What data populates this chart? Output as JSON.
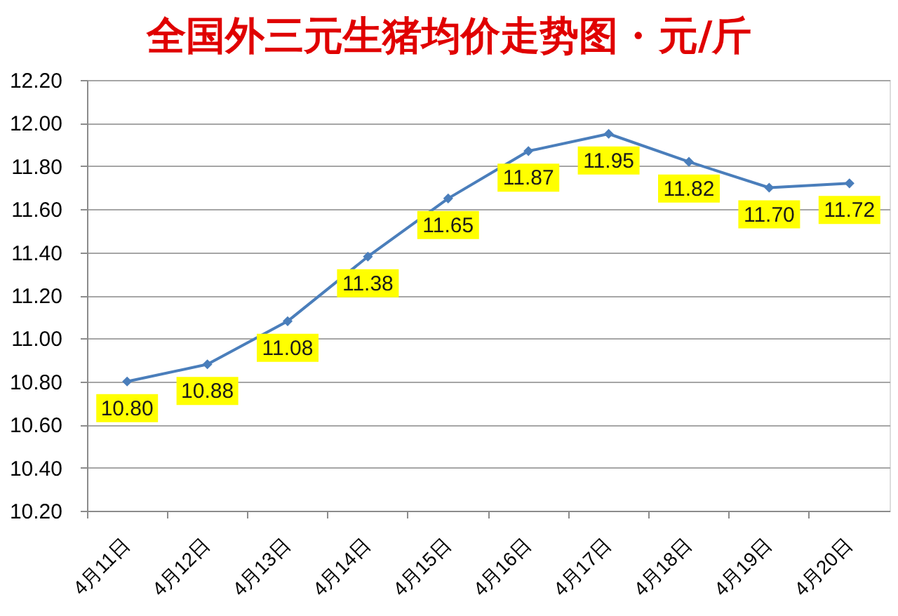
{
  "chart_data": {
    "type": "line",
    "title": "全国外三元生猪均价走势图 · 元/斤",
    "categories": [
      "4月11日",
      "4月12日",
      "4月13日",
      "4月14日",
      "4月15日",
      "4月16日",
      "4月17日",
      "4月18日",
      "4月19日",
      "4月20日"
    ],
    "series": [
      {
        "color": "#4a7ebb",
        "values": [
          10.8,
          10.88,
          11.08,
          11.38,
          11.65,
          11.87,
          11.95,
          11.82,
          11.7,
          11.72
        ],
        "value_labels": [
          "10.80",
          "10.88",
          "11.08",
          "11.38",
          "11.65",
          "11.87",
          "11.95",
          "11.82",
          "11.70",
          "11.72"
        ]
      }
    ],
    "ylim": [
      10.2,
      12.2
    ],
    "yticks": [
      {
        "value": 10.2,
        "label": "10.20"
      },
      {
        "value": 10.4,
        "label": "10.40"
      },
      {
        "value": 10.6,
        "label": "10.60"
      },
      {
        "value": 10.8,
        "label": "10.80"
      },
      {
        "value": 11.0,
        "label": "11.00"
      },
      {
        "value": 11.2,
        "label": "11.20"
      },
      {
        "value": 11.4,
        "label": "11.40"
      },
      {
        "value": 11.6,
        "label": "11.60"
      },
      {
        "value": 11.8,
        "label": "11.80"
      },
      {
        "value": 12.0,
        "label": "12.00"
      },
      {
        "value": 12.2,
        "label": "12.20"
      }
    ],
    "grid": "y",
    "marker": "diamond",
    "line_style": "solid",
    "legend": false
  }
}
